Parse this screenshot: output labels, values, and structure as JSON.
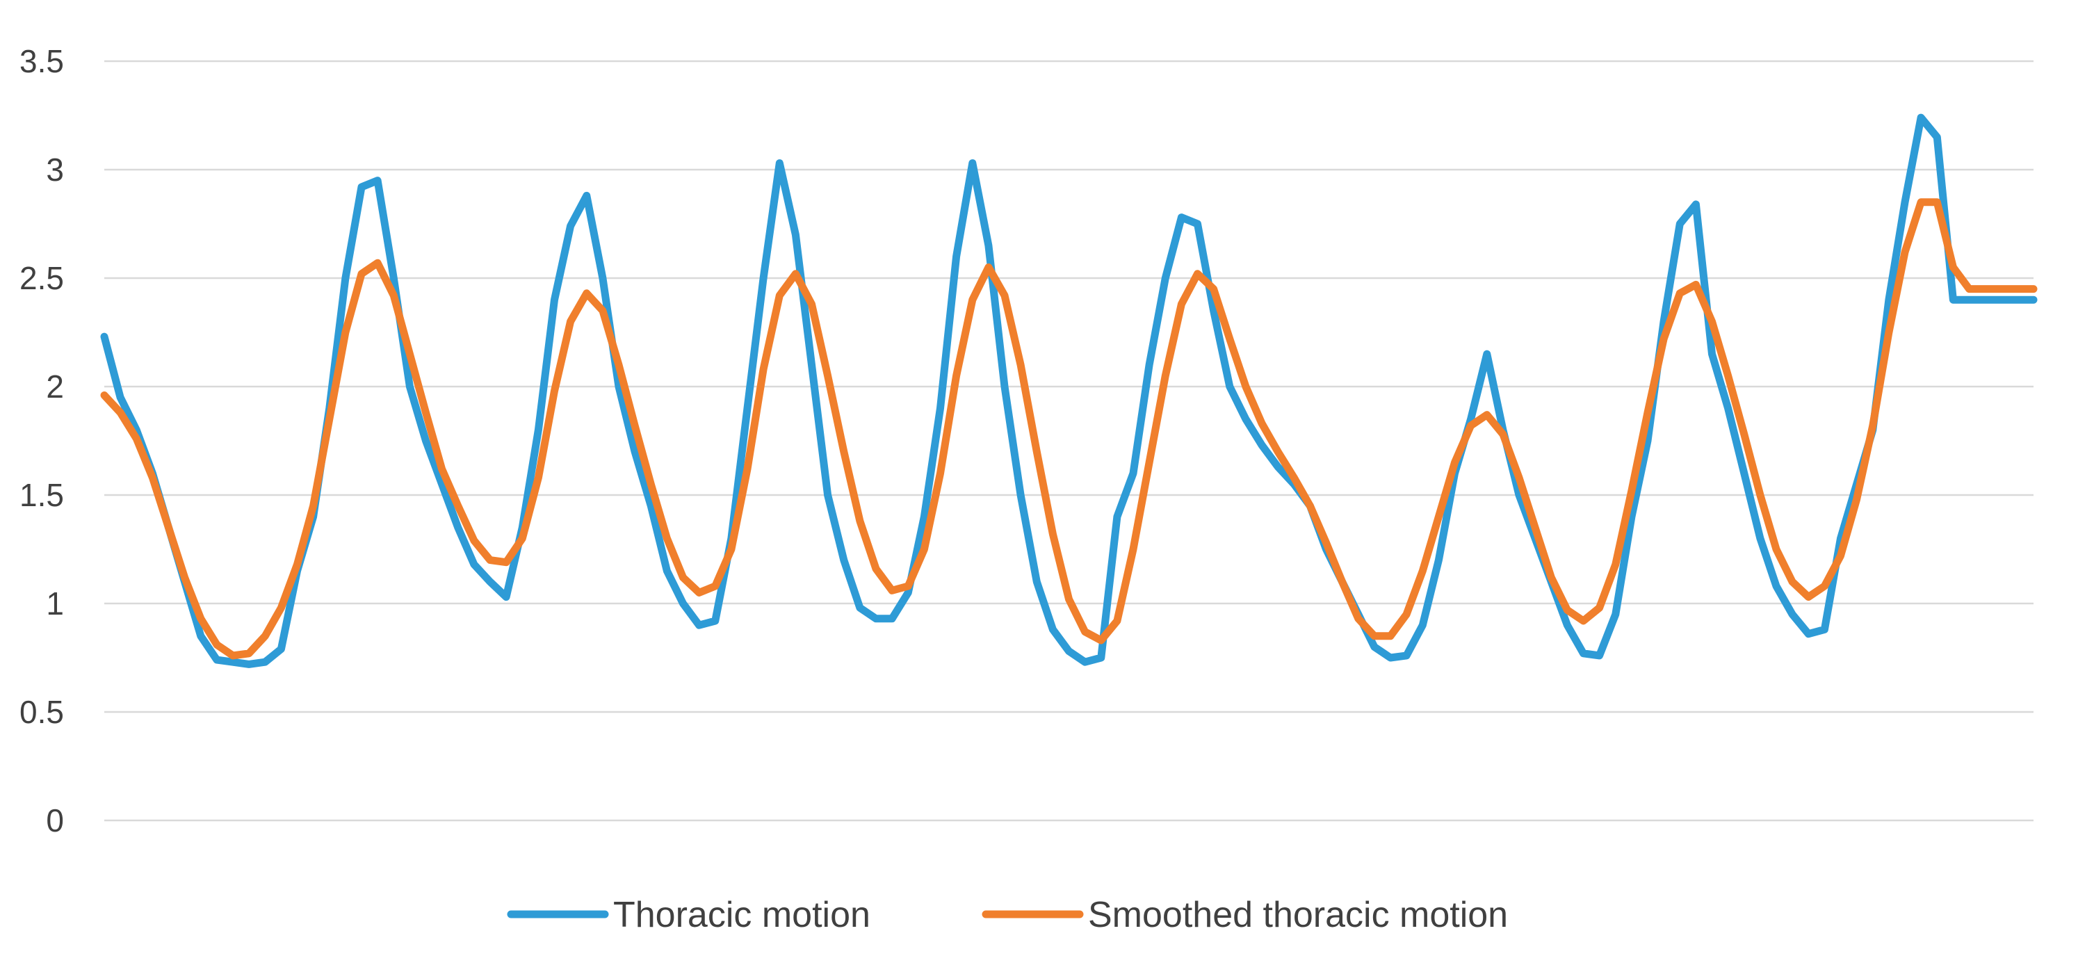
{
  "chart_data": {
    "type": "line",
    "title": "",
    "xlabel": "",
    "ylabel": "",
    "ylim": [
      0,
      3.5
    ],
    "yticks": [
      "0",
      "0.5",
      "1",
      "1.5",
      "2",
      "2.5",
      "3",
      "3.5"
    ],
    "grid": true,
    "legend_position": "bottom",
    "x": [
      0,
      1,
      2,
      3,
      4,
      5,
      6,
      7,
      8,
      9,
      10,
      11,
      12,
      13,
      14,
      15,
      16,
      17,
      18,
      19,
      20,
      21,
      22,
      23,
      24,
      25,
      26,
      27,
      28,
      29,
      30,
      31,
      32,
      33,
      34,
      35,
      36,
      37,
      38,
      39,
      40,
      41,
      42,
      43,
      44,
      45,
      46,
      47,
      48,
      49,
      50,
      51,
      52,
      53,
      54,
      55,
      56,
      57,
      58,
      59,
      60,
      61,
      62,
      63,
      64,
      65,
      66,
      67,
      68,
      69,
      70,
      71,
      72,
      73,
      74,
      75,
      76,
      77,
      78,
      79,
      80,
      81,
      82,
      83,
      84,
      85,
      86,
      87,
      88,
      89,
      90,
      91,
      92,
      93,
      94,
      95,
      96,
      97,
      98,
      99,
      100,
      101,
      102,
      103,
      104,
      105,
      106,
      107,
      108,
      109,
      110,
      111,
      112,
      113,
      114,
      115,
      116,
      117,
      118,
      119,
      120
    ],
    "series": [
      {
        "name": "Thoracic motion",
        "color": "#2e9bd6",
        "values": [
          2.23,
          1.95,
          1.8,
          1.6,
          1.35,
          1.1,
          0.85,
          0.74,
          0.73,
          0.72,
          0.73,
          0.79,
          1.15,
          1.4,
          1.9,
          2.5,
          2.92,
          2.95,
          2.5,
          2.0,
          1.75,
          1.55,
          1.35,
          1.18,
          1.1,
          1.03,
          1.35,
          1.8,
          2.4,
          2.74,
          2.88,
          2.5,
          2.0,
          1.7,
          1.45,
          1.15,
          1.0,
          0.9,
          0.92,
          1.3,
          1.9,
          2.5,
          3.03,
          2.7,
          2.1,
          1.5,
          1.2,
          0.98,
          0.93,
          0.93,
          1.05,
          1.4,
          1.9,
          2.6,
          3.03,
          2.65,
          2.0,
          1.5,
          1.1,
          0.88,
          0.78,
          0.73,
          0.75,
          1.4,
          1.6,
          2.1,
          2.5,
          2.78,
          2.75,
          2.35,
          2.0,
          1.85,
          1.73,
          1.63,
          1.55,
          1.45,
          1.25,
          1.1,
          0.95,
          0.8,
          0.75,
          0.76,
          0.9,
          1.2,
          1.6,
          1.85,
          2.15,
          1.8,
          1.5,
          1.3,
          1.1,
          0.9,
          0.77,
          0.76,
          0.95,
          1.4,
          1.75,
          2.3,
          2.75,
          2.84,
          2.15,
          1.9,
          1.6,
          1.3,
          1.08,
          0.95,
          0.86,
          0.88,
          1.3,
          1.55,
          1.8,
          2.4,
          2.85,
          3.24,
          3.15,
          2.4,
          2.4,
          2.4,
          2.4,
          2.4,
          2.4
        ]
      },
      {
        "name": "Smoothed thoracic motion",
        "color": "#f07f2c",
        "values": [
          1.96,
          1.88,
          1.76,
          1.58,
          1.35,
          1.12,
          0.93,
          0.81,
          0.76,
          0.77,
          0.85,
          0.98,
          1.18,
          1.45,
          1.85,
          2.25,
          2.52,
          2.57,
          2.42,
          2.15,
          1.88,
          1.62,
          1.45,
          1.29,
          1.2,
          1.19,
          1.3,
          1.58,
          1.98,
          2.3,
          2.43,
          2.35,
          2.1,
          1.82,
          1.55,
          1.3,
          1.12,
          1.05,
          1.08,
          1.25,
          1.62,
          2.08,
          2.42,
          2.52,
          2.38,
          2.05,
          1.7,
          1.38,
          1.16,
          1.06,
          1.08,
          1.25,
          1.6,
          2.05,
          2.4,
          2.55,
          2.42,
          2.1,
          1.7,
          1.32,
          1.02,
          0.87,
          0.83,
          0.92,
          1.25,
          1.65,
          2.05,
          2.38,
          2.52,
          2.45,
          2.22,
          2.0,
          1.83,
          1.7,
          1.58,
          1.45,
          1.28,
          1.1,
          0.93,
          0.85,
          0.85,
          0.95,
          1.15,
          1.4,
          1.65,
          1.82,
          1.87,
          1.78,
          1.58,
          1.35,
          1.12,
          0.97,
          0.92,
          0.98,
          1.18,
          1.52,
          1.88,
          2.22,
          2.43,
          2.47,
          2.3,
          2.05,
          1.78,
          1.5,
          1.25,
          1.1,
          1.03,
          1.08,
          1.22,
          1.48,
          1.82,
          2.25,
          2.62,
          2.85,
          2.85,
          2.55,
          2.45,
          2.45,
          2.45,
          2.45,
          2.45
        ]
      }
    ]
  }
}
